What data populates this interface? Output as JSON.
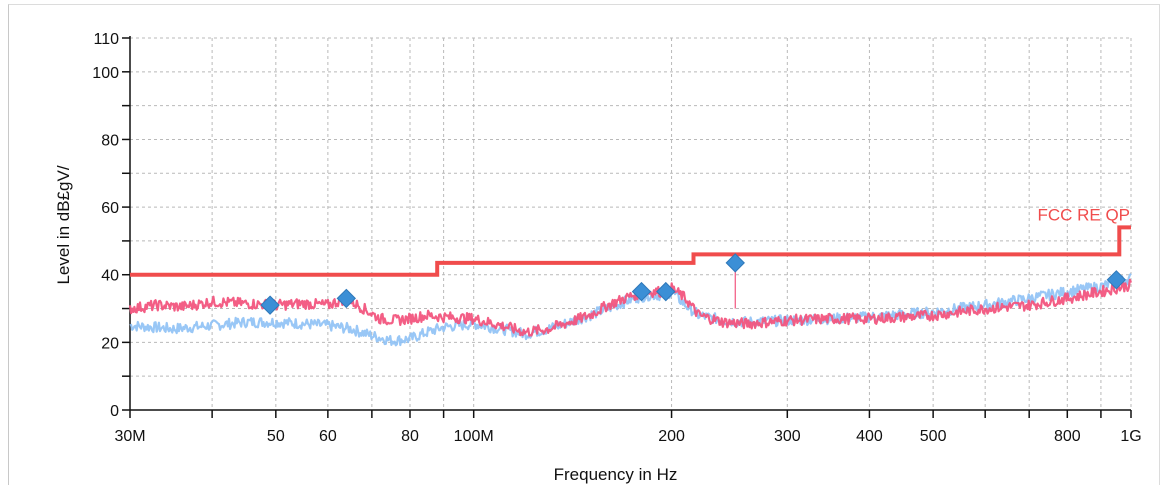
{
  "chart_data": {
    "type": "line",
    "xscale": "log",
    "xlim": [
      30000000,
      1000000000
    ],
    "ylim": [
      0,
      110
    ],
    "xlabel": "Frequency in Hz",
    "ylabel": "Level in dB£gV/",
    "grid": true,
    "x_ticks": [
      {
        "value": 30000000,
        "label": "30M"
      },
      {
        "value": 50000000,
        "label": "50"
      },
      {
        "value": 60000000,
        "label": "60"
      },
      {
        "value": 80000000,
        "label": "80"
      },
      {
        "value": 100000000,
        "label": "100M"
      },
      {
        "value": 200000000,
        "label": "200"
      },
      {
        "value": 300000000,
        "label": "300"
      },
      {
        "value": 400000000,
        "label": "400"
      },
      {
        "value": 500000000,
        "label": "500"
      },
      {
        "value": 800000000,
        "label": "800"
      },
      {
        "value": 1000000000,
        "label": "1G"
      }
    ],
    "x_minor_ticks": [
      40000000,
      70000000,
      90000000,
      600000000,
      700000000,
      900000000
    ],
    "y_ticks": [
      {
        "value": 0,
        "label": "0"
      },
      {
        "value": 20,
        "label": "20"
      },
      {
        "value": 40,
        "label": "40"
      },
      {
        "value": 60,
        "label": "60"
      },
      {
        "value": 80,
        "label": "80"
      },
      {
        "value": 100,
        "label": "100"
      },
      {
        "value": 110,
        "label": "110"
      }
    ],
    "y_minor_ticks": [
      10,
      30,
      50,
      70,
      90
    ],
    "limit_line": {
      "name": "FCC RE QP",
      "color": "#f04c4c",
      "points": [
        [
          30000000,
          40
        ],
        [
          88000000,
          40
        ],
        [
          88000000,
          43.5
        ],
        [
          216000000,
          43.5
        ],
        [
          216000000,
          46
        ],
        [
          960000000,
          46
        ],
        [
          960000000,
          54
        ],
        [
          1000000000,
          54
        ]
      ]
    },
    "series": [
      {
        "color": "#f2557e",
        "points": [
          [
            30000000,
            30
          ],
          [
            33000000,
            31
          ],
          [
            36000000,
            30.5
          ],
          [
            40000000,
            32
          ],
          [
            45000000,
            31.5
          ],
          [
            50000000,
            31
          ],
          [
            55000000,
            31.5
          ],
          [
            60000000,
            31
          ],
          [
            64000000,
            33
          ],
          [
            68000000,
            30
          ],
          [
            72000000,
            27
          ],
          [
            76000000,
            26.5
          ],
          [
            80000000,
            27
          ],
          [
            85000000,
            28
          ],
          [
            90000000,
            27.5
          ],
          [
            100000000,
            27
          ],
          [
            110000000,
            25
          ],
          [
            120000000,
            23
          ],
          [
            130000000,
            24
          ],
          [
            140000000,
            26
          ],
          [
            150000000,
            28
          ],
          [
            160000000,
            31
          ],
          [
            175000000,
            34
          ],
          [
            185000000,
            35
          ],
          [
            196000000,
            35
          ],
          [
            200000000,
            36
          ],
          [
            210000000,
            33
          ],
          [
            220000000,
            28
          ],
          [
            240000000,
            26
          ],
          [
            260000000,
            25.5
          ],
          [
            280000000,
            26
          ],
          [
            300000000,
            26.5
          ],
          [
            350000000,
            27
          ],
          [
            400000000,
            27
          ],
          [
            450000000,
            27.5
          ],
          [
            500000000,
            28
          ],
          [
            600000000,
            30
          ],
          [
            700000000,
            31
          ],
          [
            800000000,
            33
          ],
          [
            900000000,
            35
          ],
          [
            950000000,
            36
          ],
          [
            1000000000,
            37
          ]
        ]
      },
      {
        "color": "#8ec1f5",
        "points": [
          [
            30000000,
            25
          ],
          [
            35000000,
            24
          ],
          [
            40000000,
            25
          ],
          [
            45000000,
            26
          ],
          [
            50000000,
            26
          ],
          [
            55000000,
            25.5
          ],
          [
            60000000,
            25
          ],
          [
            65000000,
            24
          ],
          [
            70000000,
            22
          ],
          [
            75000000,
            20.5
          ],
          [
            80000000,
            21
          ],
          [
            85000000,
            23
          ],
          [
            90000000,
            24.5
          ],
          [
            100000000,
            25.5
          ],
          [
            110000000,
            24
          ],
          [
            120000000,
            22.5
          ],
          [
            130000000,
            24
          ],
          [
            140000000,
            26
          ],
          [
            150000000,
            28
          ],
          [
            160000000,
            30
          ],
          [
            175000000,
            33
          ],
          [
            185000000,
            34
          ],
          [
            196000000,
            34
          ],
          [
            200000000,
            35
          ],
          [
            210000000,
            31
          ],
          [
            220000000,
            28
          ],
          [
            240000000,
            26.5
          ],
          [
            260000000,
            26
          ],
          [
            300000000,
            26.5
          ],
          [
            350000000,
            27
          ],
          [
            400000000,
            27.5
          ],
          [
            500000000,
            29
          ],
          [
            600000000,
            31
          ],
          [
            700000000,
            33
          ],
          [
            800000000,
            35
          ],
          [
            900000000,
            36.5
          ],
          [
            1000000000,
            39
          ]
        ]
      }
    ],
    "markers": [
      {
        "x": 49000000,
        "y": 31
      },
      {
        "x": 64000000,
        "y": 33
      },
      {
        "x": 180000000,
        "y": 35
      },
      {
        "x": 196000000,
        "y": 35
      },
      {
        "x": 250000000,
        "y": 43.5
      },
      {
        "x": 950000000,
        "y": 38.5
      }
    ],
    "marker_color": "#3b8fd6"
  }
}
